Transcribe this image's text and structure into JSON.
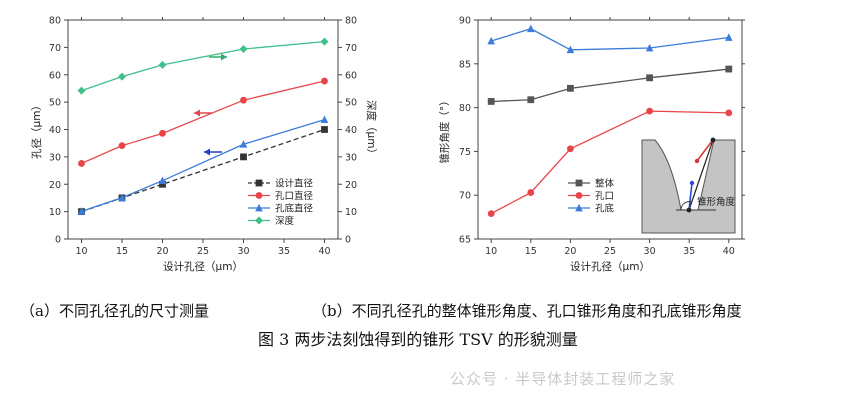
{
  "chart_data": [
    {
      "type": "line",
      "xlabel": "设计孔径（μm）",
      "ylabel": "孔径（μm）",
      "y2label": "深度（μm）",
      "xticks": [
        10,
        15,
        20,
        25,
        30,
        35,
        40
      ],
      "ylim": [
        0,
        80
      ],
      "yticks": [
        0,
        10,
        20,
        30,
        40,
        50,
        60,
        70,
        80
      ],
      "y2lim": [
        0,
        80
      ],
      "y2ticks": [
        0,
        10,
        20,
        30,
        40,
        50,
        60,
        70,
        80
      ],
      "legend_position": "bottom-right",
      "series": [
        {
          "name": "设计直径",
          "color": "#333333",
          "marker": "square",
          "dashed": true,
          "x": [
            10,
            15,
            20,
            30,
            40
          ],
          "y": [
            10,
            15,
            20,
            30,
            40
          ]
        },
        {
          "name": "孔口直径",
          "color": "#e8454a",
          "marker": "circle",
          "dashed": false,
          "x": [
            10,
            15,
            20,
            30,
            40
          ],
          "y": [
            27.6,
            34.1,
            38.6,
            50.7,
            57.7
          ]
        },
        {
          "name": "孔底直径",
          "color": "#3b7dd8",
          "marker": "triangle",
          "dashed": false,
          "x": [
            10,
            15,
            20,
            30,
            40
          ],
          "y": [
            10.1,
            15.1,
            21.3,
            34.6,
            43.6
          ]
        },
        {
          "name": "深度",
          "color": "#3fbf8a",
          "marker": "diamond",
          "dashed": false,
          "x": [
            10,
            15,
            20,
            30,
            40
          ],
          "y": [
            54.2,
            59.3,
            63.6,
            69.4,
            72.1
          ]
        }
      ],
      "caption": "（a）不同孔径孔的尺寸测量"
    },
    {
      "type": "line",
      "xlabel": "设计孔径（μm）",
      "ylabel": "锥形角度（°）",
      "xticks": [
        10,
        15,
        20,
        25,
        30,
        35,
        40
      ],
      "ylim": [
        65,
        90
      ],
      "yticks": [
        65,
        70,
        75,
        80,
        85,
        90
      ],
      "legend_position": "bottom-center",
      "series": [
        {
          "name": "整体",
          "color": "#555555",
          "marker": "square",
          "x": [
            10,
            15,
            20,
            30,
            40
          ],
          "y": [
            80.7,
            80.9,
            82.2,
            83.4,
            84.4
          ]
        },
        {
          "name": "孔口",
          "color": "#e8454a",
          "marker": "circle",
          "x": [
            10,
            15,
            20,
            30,
            40
          ],
          "y": [
            67.9,
            70.3,
            75.3,
            79.6,
            79.4
          ]
        },
        {
          "name": "孔底",
          "color": "#3b7dd8",
          "marker": "triangle",
          "x": [
            10,
            15,
            20,
            30,
            40
          ],
          "y": [
            87.6,
            89.0,
            86.6,
            86.8,
            88.0
          ]
        }
      ],
      "inset_label": "锥形角度",
      "caption": "（b）不同孔径孔的整体锥形角度、孔口锥形角度和孔底锥形角度"
    }
  ],
  "figure_title": "图 3  两步法刻蚀得到的锥形 TSV 的形貌测量",
  "watermark": "公众号 · 半导体封装工程师之家"
}
